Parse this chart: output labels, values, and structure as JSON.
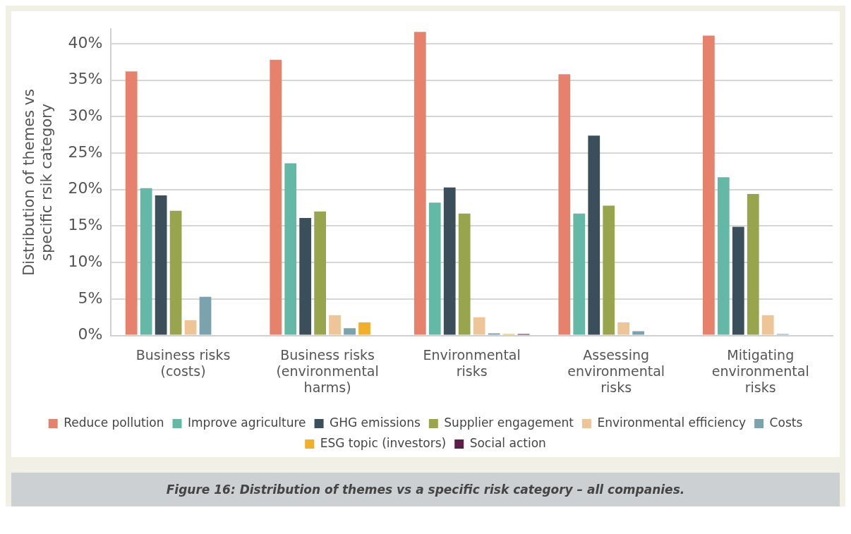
{
  "chart_data": {
    "type": "bar",
    "ylabel": "Distribution of themes vs specific rsik category",
    "categories": [
      "Business risks (costs)",
      "Business risks (environmental harms)",
      "Environmental risks",
      "Assessing environmental risks",
      "Mitigating environmental risks"
    ],
    "series": [
      {
        "name": "Reduce pollution",
        "color": "#e6816b",
        "values": [
          36.2,
          37.8,
          41.6,
          35.8,
          41.1
        ]
      },
      {
        "name": "Improve agriculture",
        "color": "#63b8a6",
        "values": [
          20.2,
          23.6,
          18.2,
          16.7,
          21.7
        ]
      },
      {
        "name": "GHG emissions",
        "color": "#3b4f5a",
        "values": [
          19.2,
          16.1,
          20.3,
          27.4,
          14.9
        ]
      },
      {
        "name": "Supplier engagement",
        "color": "#98a54d",
        "values": [
          17.1,
          17.0,
          16.7,
          17.8,
          19.4
        ]
      },
      {
        "name": "Environmental efficiency",
        "color": "#edc596",
        "values": [
          2.1,
          2.8,
          2.5,
          1.8,
          2.8
        ]
      },
      {
        "name": "Costs",
        "color": "#7aa3ad",
        "values": [
          5.3,
          1.0,
          0.3,
          0.6,
          0.2
        ]
      },
      {
        "name": "ESG topic (investors)",
        "color": "#f0b02a",
        "values": [
          0,
          1.8,
          0.2,
          0,
          0
        ]
      },
      {
        "name": "Social action",
        "color": "#5c1f45",
        "values": [
          0,
          0,
          0.2,
          0,
          0
        ]
      }
    ],
    "ylim": [
      0,
      42
    ],
    "yticks": [
      {
        "value": 0,
        "label": "0%"
      },
      {
        "value": 5,
        "label": "5%"
      },
      {
        "value": 10,
        "label": "10%"
      },
      {
        "value": 15,
        "label": "15%"
      },
      {
        "value": 20,
        "label": "20%"
      },
      {
        "value": 25,
        "label": "25%"
      },
      {
        "value": 30,
        "label": "30%"
      },
      {
        "value": 35,
        "label": "35%"
      },
      {
        "value": 40,
        "label": "40%"
      }
    ],
    "grid": "y",
    "legend": "bottom",
    "annotations": [
      "Figure 16: Distribution of themes vs a specific risk category – all companies."
    ]
  }
}
